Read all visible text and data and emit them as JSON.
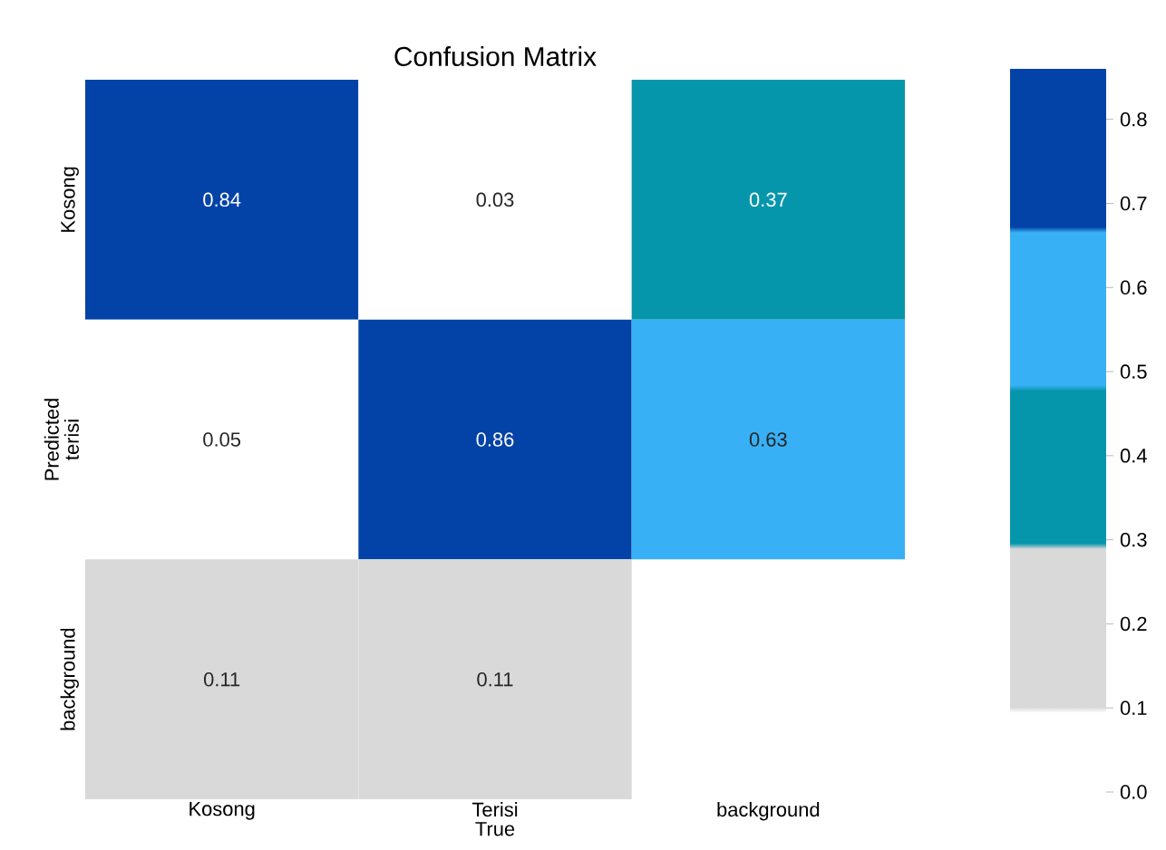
{
  "chart_data": {
    "type": "heatmap",
    "title": "Confusion Matrix",
    "xlabel": "True",
    "ylabel": "Predicted",
    "categories": [
      "Kosong",
      "Terisi",
      "background"
    ],
    "y_categories": [
      "Kosong",
      "terisi",
      "background"
    ],
    "cells": [
      [
        0.84,
        0.03,
        0.37
      ],
      [
        0.05,
        0.86,
        0.63
      ],
      [
        0.11,
        0.11,
        null
      ]
    ],
    "data_labels": true,
    "clim": [
      0.0,
      0.86
    ],
    "cticks": [
      {
        "value": 0.0,
        "label": "0.0"
      },
      0.1,
      0.2,
      0.3,
      0.4,
      0.5,
      0.6,
      0.7,
      0.8
    ]
  }
}
